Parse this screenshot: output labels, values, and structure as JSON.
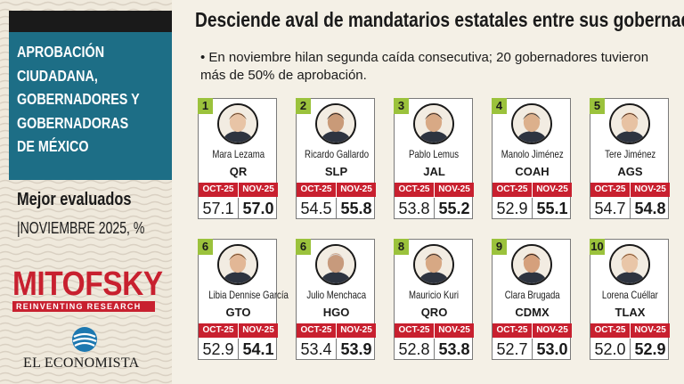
{
  "headline": "Desciende aval de mandatarios estatales entre sus gobernados",
  "lead": "• En noviembre hilan segunda caída consecutiva; 20 gobernadores tuvieron más de 50% de aprobación.",
  "panel": {
    "title_lines": [
      "APROBACIÓN",
      "CIUDADANA,",
      "GOBERNADORES Y",
      "GOBERNADORAS",
      "DE MÉXICO"
    ],
    "subtitle": "Mejor evaluados",
    "period": "|NOVIEMBRE 2025, %",
    "pollster": "MITOFSKY",
    "pollster_tagline": "REINVENTING RESEARCH",
    "publisher": "EL ECONOMISTA"
  },
  "colors": {
    "accent": "#c8202f",
    "panel": "#1d6e86",
    "rank": "#9bc23c"
  },
  "chart_data": {
    "type": "table",
    "title": "Aprobación ciudadana, gobernadores y gobernadoras de México — Mejor evaluados, noviembre 2025 (%)",
    "columns": [
      "OCT-25",
      "NOV-25"
    ],
    "rows": [
      {
        "rank": "1",
        "name": "Mara Lezama",
        "state": "QR",
        "oct": "57.1",
        "nov": "57.0"
      },
      {
        "rank": "2",
        "name": "Ricardo Gallardo",
        "state": "SLP",
        "oct": "54.5",
        "nov": "55.8"
      },
      {
        "rank": "3",
        "name": "Pablo Lemus",
        "state": "JAL",
        "oct": "53.8",
        "nov": "55.2"
      },
      {
        "rank": "4",
        "name": "Manolo Jiménez",
        "state": "COAH",
        "oct": "52.9",
        "nov": "55.1"
      },
      {
        "rank": "5",
        "name": "Tere Jiménez",
        "state": "AGS",
        "oct": "54.7",
        "nov": "54.8"
      },
      {
        "rank": "6",
        "name": "Libia Dennise García",
        "state": "GTO",
        "oct": "52.9",
        "nov": "54.1"
      },
      {
        "rank": "6",
        "name": "Julio Menchaca",
        "state": "HGO",
        "oct": "53.4",
        "nov": "53.9"
      },
      {
        "rank": "8",
        "name": "Mauricio Kuri",
        "state": "QRO",
        "oct": "52.8",
        "nov": "53.8"
      },
      {
        "rank": "9",
        "name": "Clara Brugada",
        "state": "CDMX",
        "oct": "52.7",
        "nov": "53.0"
      },
      {
        "rank": "10",
        "name": "Lorena Cuéllar",
        "state": "TLAX",
        "oct": "52.0",
        "nov": "52.9"
      }
    ]
  }
}
